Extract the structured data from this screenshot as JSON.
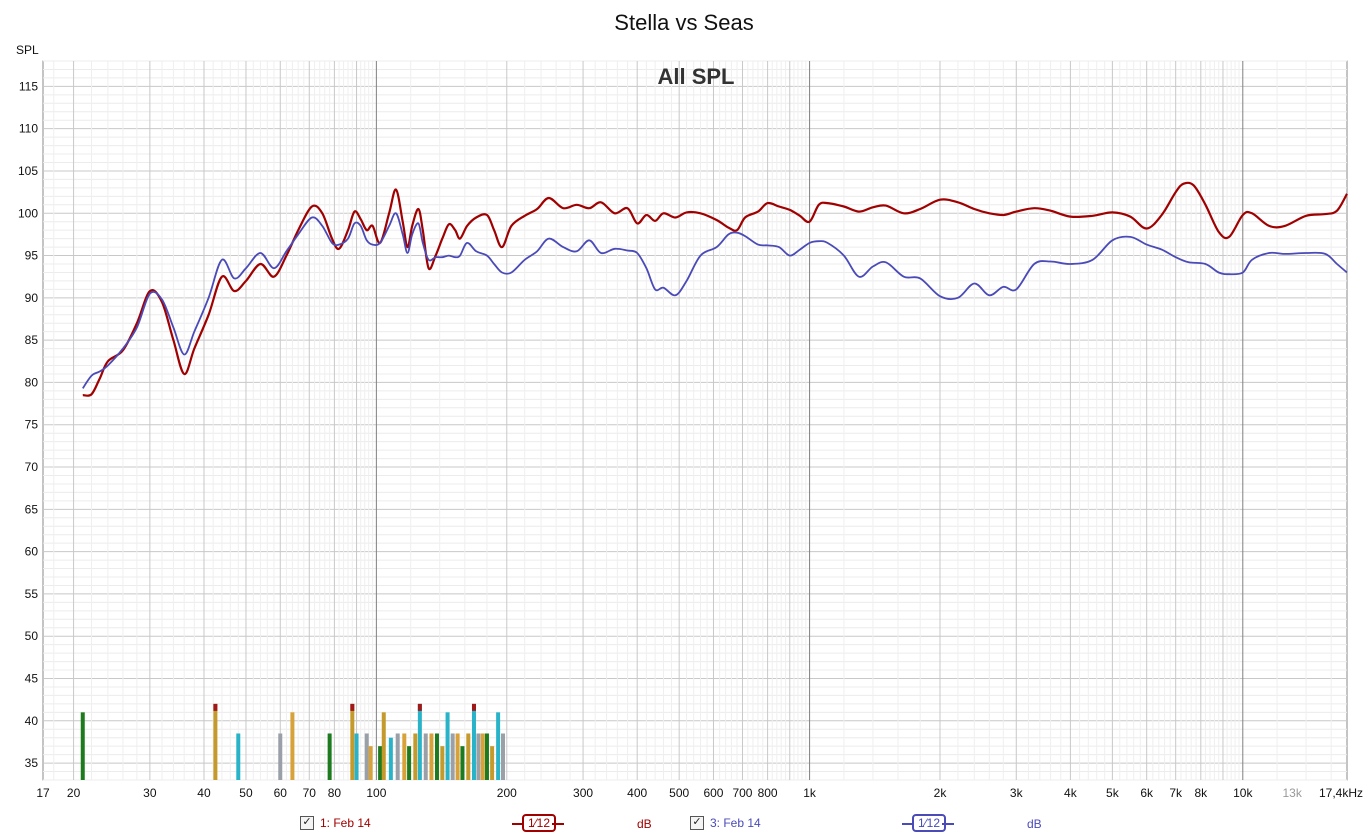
{
  "chart_data": {
    "type": "line",
    "title": "Stella vs Seas",
    "subtitle": "All SPL",
    "ylabel": "SPL",
    "xlabel": "",
    "x_scale": "log",
    "xlim": [
      17,
      17400
    ],
    "ylim": [
      33,
      118
    ],
    "grid": true,
    "y_ticks": [
      35,
      40,
      45,
      50,
      55,
      60,
      65,
      70,
      75,
      80,
      85,
      90,
      95,
      100,
      105,
      110,
      115
    ],
    "x_tick_labels": [
      {
        "f": 17,
        "label": "17"
      },
      {
        "f": 20,
        "label": "20"
      },
      {
        "f": 30,
        "label": "30"
      },
      {
        "f": 40,
        "label": "40"
      },
      {
        "f": 50,
        "label": "50"
      },
      {
        "f": 60,
        "label": "60"
      },
      {
        "f": 70,
        "label": "70"
      },
      {
        "f": 80,
        "label": "80"
      },
      {
        "f": 100,
        "label": "100"
      },
      {
        "f": 200,
        "label": "200"
      },
      {
        "f": 300,
        "label": "300"
      },
      {
        "f": 400,
        "label": "400"
      },
      {
        "f": 500,
        "label": "500"
      },
      {
        "f": 600,
        "label": "600"
      },
      {
        "f": 700,
        "label": "700"
      },
      {
        "f": 800,
        "label": "800"
      },
      {
        "f": 1000,
        "label": "1k"
      },
      {
        "f": 2000,
        "label": "2k"
      },
      {
        "f": 3000,
        "label": "3k"
      },
      {
        "f": 4000,
        "label": "4k"
      },
      {
        "f": 5000,
        "label": "5k"
      },
      {
        "f": 6000,
        "label": "6k"
      },
      {
        "f": 7000,
        "label": "7k"
      },
      {
        "f": 8000,
        "label": "8k"
      },
      {
        "f": 10000,
        "label": "10k"
      },
      {
        "f": 13000,
        "label": "13k",
        "muted": true
      },
      {
        "f": 17400,
        "label": "17,4kHz"
      }
    ],
    "series": [
      {
        "name": "1: Feb 14",
        "color": "#a00000",
        "points": [
          [
            21,
            78.5
          ],
          [
            22,
            78.6
          ],
          [
            23,
            80.5
          ],
          [
            24,
            82.5
          ],
          [
            26,
            83.8
          ],
          [
            28,
            87
          ],
          [
            30,
            90.8
          ],
          [
            32,
            89.5
          ],
          [
            34,
            85
          ],
          [
            36,
            81
          ],
          [
            38,
            84
          ],
          [
            41,
            88
          ],
          [
            44,
            92.5
          ],
          [
            47,
            90.8
          ],
          [
            50,
            92
          ],
          [
            54,
            94
          ],
          [
            58,
            92.5
          ],
          [
            62,
            95
          ],
          [
            66,
            98
          ],
          [
            71,
            100.8
          ],
          [
            75,
            100
          ],
          [
            79,
            97
          ],
          [
            82,
            95.8
          ],
          [
            86,
            98
          ],
          [
            89,
            100.2
          ],
          [
            92,
            99.3
          ],
          [
            95,
            98
          ],
          [
            98,
            98.5
          ],
          [
            102,
            96.5
          ],
          [
            107,
            100
          ],
          [
            111,
            102.8
          ],
          [
            115,
            99
          ],
          [
            118,
            96
          ],
          [
            121,
            98.5
          ],
          [
            125,
            100.5
          ],
          [
            128,
            98
          ],
          [
            132,
            93.5
          ],
          [
            137,
            95
          ],
          [
            142,
            97
          ],
          [
            147,
            98.7
          ],
          [
            152,
            98
          ],
          [
            156,
            97
          ],
          [
            162,
            98.5
          ],
          [
            170,
            99.5
          ],
          [
            180,
            99.8
          ],
          [
            187,
            98
          ],
          [
            195,
            96
          ],
          [
            205,
            98.5
          ],
          [
            220,
            99.7
          ],
          [
            235,
            100.5
          ],
          [
            250,
            101.8
          ],
          [
            270,
            100.6
          ],
          [
            290,
            101
          ],
          [
            310,
            100.6
          ],
          [
            330,
            101.3
          ],
          [
            355,
            100
          ],
          [
            380,
            100.6
          ],
          [
            400,
            98.8
          ],
          [
            420,
            99.8
          ],
          [
            440,
            99.1
          ],
          [
            460,
            100
          ],
          [
            490,
            99.5
          ],
          [
            520,
            100.1
          ],
          [
            560,
            100
          ],
          [
            610,
            99.2
          ],
          [
            650,
            98.3
          ],
          [
            680,
            98
          ],
          [
            710,
            99.5
          ],
          [
            760,
            100.2
          ],
          [
            800,
            101.2
          ],
          [
            850,
            100.8
          ],
          [
            900,
            100.4
          ],
          [
            950,
            99.7
          ],
          [
            1000,
            99
          ],
          [
            1050,
            101
          ],
          [
            1100,
            101.2
          ],
          [
            1200,
            100.8
          ],
          [
            1300,
            100.2
          ],
          [
            1400,
            100.7
          ],
          [
            1500,
            100.9
          ],
          [
            1650,
            100
          ],
          [
            1800,
            100.5
          ],
          [
            2000,
            101.6
          ],
          [
            2200,
            101.3
          ],
          [
            2400,
            100.5
          ],
          [
            2600,
            100
          ],
          [
            2800,
            99.8
          ],
          [
            3000,
            100.2
          ],
          [
            3300,
            100.6
          ],
          [
            3600,
            100.3
          ],
          [
            4000,
            99.6
          ],
          [
            4500,
            99.7
          ],
          [
            5000,
            100.1
          ],
          [
            5500,
            99.6
          ],
          [
            6000,
            98.2
          ],
          [
            6500,
            99.8
          ],
          [
            7000,
            102.5
          ],
          [
            7300,
            103.5
          ],
          [
            7700,
            103.3
          ],
          [
            8200,
            101
          ],
          [
            8800,
            97.8
          ],
          [
            9300,
            97.2
          ],
          [
            10000,
            99.8
          ],
          [
            10500,
            100
          ],
          [
            11500,
            98.5
          ],
          [
            12500,
            98.5
          ],
          [
            14000,
            99.7
          ],
          [
            15500,
            99.9
          ],
          [
            16500,
            100.3
          ],
          [
            17400,
            102.3
          ]
        ]
      },
      {
        "name": "3: Feb 14",
        "color": "#4a4ab8",
        "points": [
          [
            21,
            79.3
          ],
          [
            22,
            80.8
          ],
          [
            23,
            81.3
          ],
          [
            24,
            82
          ],
          [
            26,
            84
          ],
          [
            28,
            86.5
          ],
          [
            30,
            90.5
          ],
          [
            32,
            89.8
          ],
          [
            34,
            86.5
          ],
          [
            36,
            83.3
          ],
          [
            38,
            86
          ],
          [
            41,
            90
          ],
          [
            44,
            94.5
          ],
          [
            47,
            92.3
          ],
          [
            50,
            93.5
          ],
          [
            54,
            95.3
          ],
          [
            58,
            93.5
          ],
          [
            62,
            95.5
          ],
          [
            66,
            97.5
          ],
          [
            71,
            99.5
          ],
          [
            75,
            98.5
          ],
          [
            79,
            96.5
          ],
          [
            82,
            96.3
          ],
          [
            86,
            97
          ],
          [
            89,
            98.8
          ],
          [
            92,
            98.5
          ],
          [
            95,
            96.8
          ],
          [
            98,
            96.3
          ],
          [
            102,
            96.5
          ],
          [
            107,
            98.5
          ],
          [
            111,
            100
          ],
          [
            115,
            97.5
          ],
          [
            118,
            95.3
          ],
          [
            121,
            97.5
          ],
          [
            125,
            98.8
          ],
          [
            128,
            96.5
          ],
          [
            132,
            94.5
          ],
          [
            137,
            94.8
          ],
          [
            142,
            94.8
          ],
          [
            147,
            95
          ],
          [
            152,
            94.8
          ],
          [
            156,
            95
          ],
          [
            162,
            96.5
          ],
          [
            170,
            95.5
          ],
          [
            180,
            95
          ],
          [
            187,
            94
          ],
          [
            195,
            93
          ],
          [
            205,
            93
          ],
          [
            220,
            94.5
          ],
          [
            235,
            95.5
          ],
          [
            250,
            97
          ],
          [
            270,
            96
          ],
          [
            290,
            95.5
          ],
          [
            310,
            96.8
          ],
          [
            330,
            95.3
          ],
          [
            355,
            95.8
          ],
          [
            380,
            95.6
          ],
          [
            400,
            95.3
          ],
          [
            420,
            93.5
          ],
          [
            440,
            91
          ],
          [
            460,
            91.2
          ],
          [
            490,
            90.3
          ],
          [
            520,
            92
          ],
          [
            560,
            95
          ],
          [
            610,
            96
          ],
          [
            650,
            97.5
          ],
          [
            680,
            97.7
          ],
          [
            710,
            97.3
          ],
          [
            760,
            96.3
          ],
          [
            800,
            96.2
          ],
          [
            850,
            96
          ],
          [
            900,
            95
          ],
          [
            950,
            95.7
          ],
          [
            1000,
            96.5
          ],
          [
            1050,
            96.7
          ],
          [
            1100,
            96.5
          ],
          [
            1200,
            95
          ],
          [
            1300,
            92.5
          ],
          [
            1400,
            93.7
          ],
          [
            1500,
            94.2
          ],
          [
            1650,
            92.5
          ],
          [
            1800,
            92.3
          ],
          [
            2000,
            90.2
          ],
          [
            2200,
            90
          ],
          [
            2400,
            91.7
          ],
          [
            2600,
            90.3
          ],
          [
            2800,
            91.3
          ],
          [
            3000,
            91
          ],
          [
            3300,
            94
          ],
          [
            3600,
            94.3
          ],
          [
            4000,
            94
          ],
          [
            4500,
            94.5
          ],
          [
            5000,
            96.8
          ],
          [
            5500,
            97.2
          ],
          [
            6000,
            96.3
          ],
          [
            6500,
            95.7
          ],
          [
            7000,
            94.8
          ],
          [
            7500,
            94.2
          ],
          [
            8200,
            94
          ],
          [
            8800,
            93
          ],
          [
            9300,
            92.8
          ],
          [
            10000,
            93
          ],
          [
            10500,
            94.5
          ],
          [
            11500,
            95.3
          ],
          [
            12500,
            95.2
          ],
          [
            14000,
            95.3
          ],
          [
            15500,
            95.2
          ],
          [
            16500,
            94
          ],
          [
            17400,
            93
          ]
        ]
      }
    ],
    "peak_markers": [
      {
        "f": 21,
        "top": 41
      },
      {
        "f": 42.5,
        "top": 42
      },
      {
        "f": 48,
        "top": 38.5
      },
      {
        "f": 60,
        "top": 38.5
      },
      {
        "f": 64,
        "top": 41
      },
      {
        "f": 78,
        "top": 38.5
      },
      {
        "f": 88,
        "top": 42
      },
      {
        "f": 90,
        "top": 38.5
      },
      {
        "f": 95,
        "top": 38.5
      },
      {
        "f": 97,
        "top": 37
      },
      {
        "f": 102,
        "top": 37
      },
      {
        "f": 104,
        "top": 41
      },
      {
        "f": 108,
        "top": 38
      },
      {
        "f": 112,
        "top": 38.5
      },
      {
        "f": 116,
        "top": 38.5
      },
      {
        "f": 119,
        "top": 37
      },
      {
        "f": 123,
        "top": 38.5
      },
      {
        "f": 126,
        "top": 42
      },
      {
        "f": 130,
        "top": 38.5
      },
      {
        "f": 134,
        "top": 38.5
      },
      {
        "f": 138,
        "top": 38.5
      },
      {
        "f": 142,
        "top": 37
      },
      {
        "f": 146,
        "top": 41
      },
      {
        "f": 150,
        "top": 38.5
      },
      {
        "f": 154,
        "top": 38.5
      },
      {
        "f": 158,
        "top": 37
      },
      {
        "f": 163,
        "top": 38.5
      },
      {
        "f": 168,
        "top": 42
      },
      {
        "f": 172,
        "top": 38.5
      },
      {
        "f": 176,
        "top": 38.5
      },
      {
        "f": 180,
        "top": 38.5
      },
      {
        "f": 185,
        "top": 37
      },
      {
        "f": 191,
        "top": 41
      },
      {
        "f": 196,
        "top": 38.5
      }
    ]
  },
  "legend": [
    {
      "checked": "✓",
      "label": "1: Feb 14",
      "smoothing": "1⁄12",
      "unit": "dB",
      "color": "#a00000"
    },
    {
      "checked": "✓",
      "label": "3: Feb 14",
      "smoothing": "1⁄12",
      "unit": "dB",
      "color": "#4a4ab8"
    }
  ]
}
